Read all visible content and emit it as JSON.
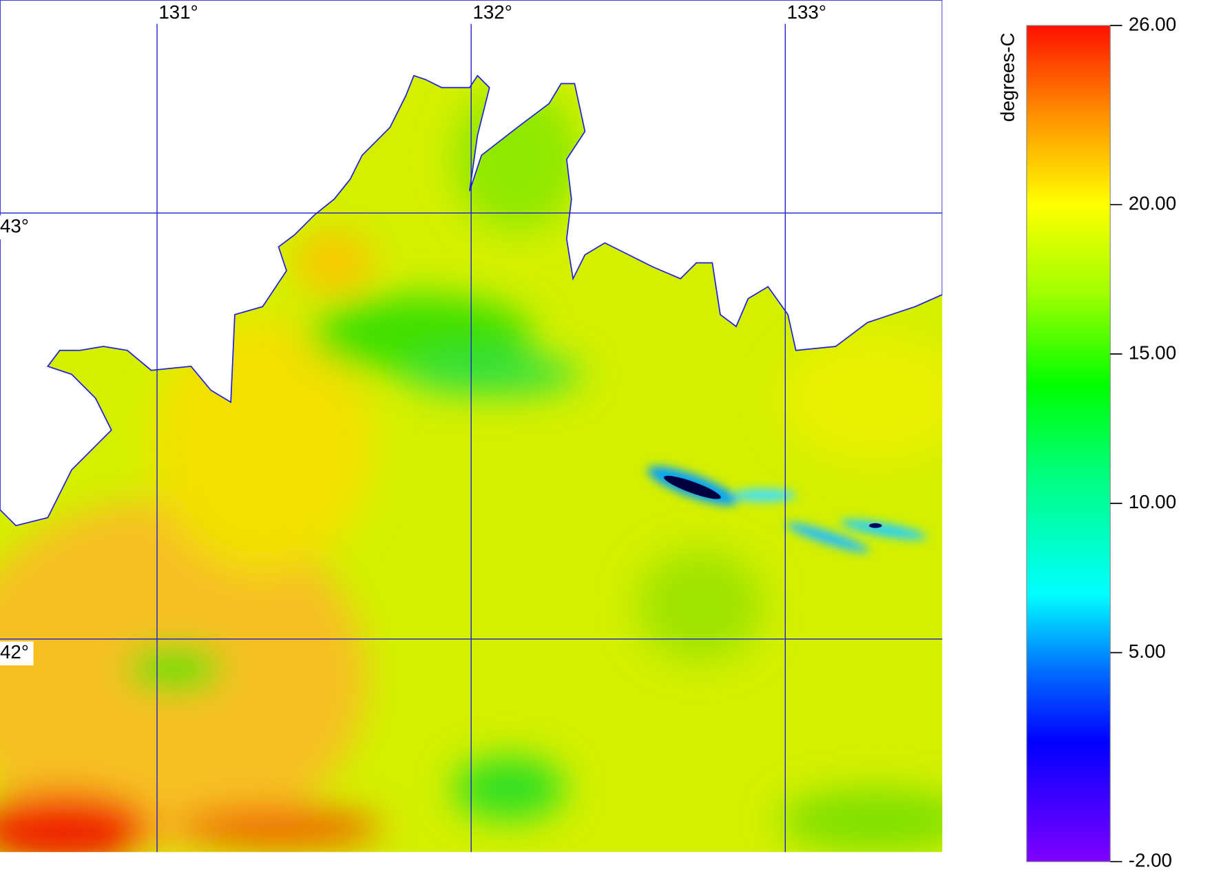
{
  "map": {
    "lon_lines": [
      {
        "value": 131,
        "label": "131°"
      },
      {
        "value": 132,
        "label": "132°"
      },
      {
        "value": 133,
        "label": "133°"
      }
    ],
    "lat_lines": [
      {
        "value": 43,
        "label": "43°"
      },
      {
        "value": 42,
        "label": "42°"
      }
    ],
    "lon_range": [
      130.5,
      133.5
    ],
    "lat_range": [
      41.5,
      43.5
    ]
  },
  "colorbar": {
    "label": "degrees-C",
    "range": [
      -2,
      26
    ],
    "ticks": [
      {
        "value": 26,
        "label": "26.00"
      },
      {
        "value": 20,
        "label": "20.00"
      },
      {
        "value": 15,
        "label": "15.00"
      },
      {
        "value": 10,
        "label": "10.00"
      },
      {
        "value": 5,
        "label": "5.00"
      },
      {
        "value": -2,
        "label": "-2.00"
      }
    ]
  }
}
